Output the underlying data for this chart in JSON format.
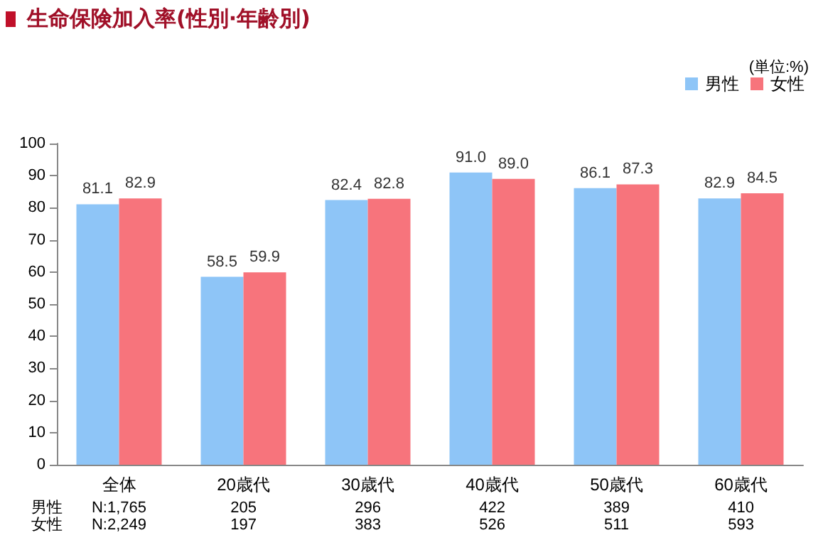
{
  "chart_data": {
    "type": "bar",
    "title": "生命保険加入率(性別·年齢別)",
    "categories": [
      "全体",
      "20歳代",
      "30歳代",
      "40歳代",
      "50歳代",
      "60歳代"
    ],
    "series": [
      {
        "name": "男性",
        "color": "#8ec5f7",
        "values": [
          81.1,
          58.5,
          82.4,
          91.0,
          86.1,
          82.9
        ]
      },
      {
        "name": "女性",
        "color": "#f7747c",
        "values": [
          82.9,
          59.9,
          82.8,
          89.0,
          87.3,
          84.5
        ]
      }
    ],
    "ylim": [
      0,
      100
    ],
    "yticks": [
      0,
      10,
      20,
      30,
      40,
      50,
      60,
      70,
      80,
      90,
      100
    ],
    "value_labels": [
      [
        "81.1",
        "58.5",
        "82.4",
        "91.0",
        "86.1",
        "82.9"
      ],
      [
        "82.9",
        "59.9",
        "82.8",
        "89.0",
        "87.3",
        "84.5"
      ]
    ],
    "legend": "top right",
    "grid": false,
    "annotations": [
      "(単位:%)",
      "男性",
      "N:1,765",
      "205",
      "296",
      "422",
      "389",
      "410",
      "女性",
      "N:2,249",
      "197",
      "383",
      "526",
      "511",
      "593"
    ]
  }
}
